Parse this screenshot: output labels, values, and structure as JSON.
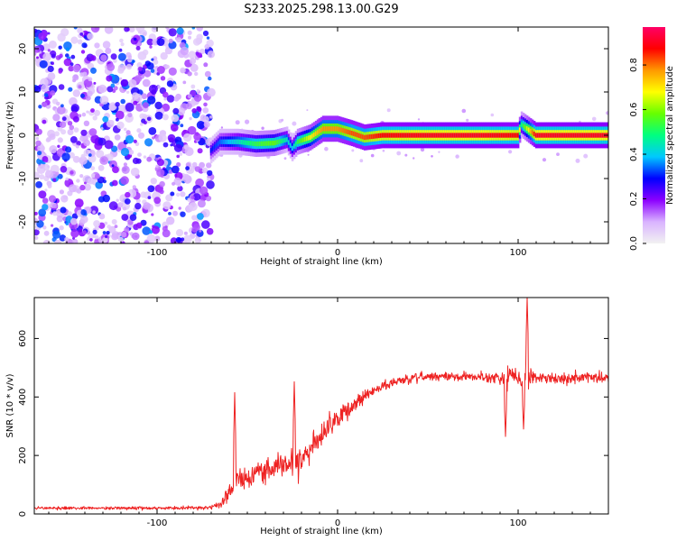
{
  "title": "S233.2025.298.13.00.G29",
  "chart_data": [
    {
      "type": "heatmap",
      "name": "spectrogram",
      "xlabel": "Height of straight line (km)",
      "ylabel": "Frequency (Hz)",
      "xlim": [
        -168,
        150
      ],
      "ylim": [
        -25,
        25
      ],
      "xticks": [
        -100,
        0,
        100
      ],
      "yticks": [
        -20,
        -10,
        0,
        10,
        20
      ],
      "xtick_labels": [
        "-100",
        "0",
        "100"
      ],
      "ytick_labels": [
        "-20",
        "-10",
        "0",
        "10",
        "20"
      ],
      "colorbar": {
        "label": "Normalized spectral amplitude",
        "range": [
          0,
          0.97
        ],
        "ticks": [
          0,
          0.2,
          0.4,
          0.6,
          0.8
        ],
        "tick_labels": [
          "0.0",
          "0.2",
          "0.4",
          "0.6",
          "0.8"
        ],
        "colors": [
          "#f2f2f2",
          "#d9b3ff",
          "#8c00ff",
          "#0000ff",
          "#00c8ff",
          "#00ff80",
          "#66ff00",
          "#ffff00",
          "#ff9900",
          "#ff0000",
          "#ff0066"
        ]
      },
      "noise_region_x": [
        -168,
        -70
      ],
      "signal_track": {
        "x": [
          -70,
          -65,
          -55,
          -45,
          -35,
          -28,
          -25,
          -22,
          -15,
          -8,
          0,
          8,
          15,
          25,
          40,
          60,
          80,
          100,
          102,
          110,
          130,
          150
        ],
        "freq": [
          -3.5,
          -1.5,
          -1.5,
          -2.0,
          -1.8,
          -1.0,
          -3.0,
          -1.5,
          -0.5,
          1.5,
          1.5,
          0.5,
          -0.5,
          0.0,
          0.0,
          0.0,
          0.0,
          0.0,
          2.5,
          0.0,
          0.0,
          0.0
        ],
        "amplitude": [
          0.3,
          0.35,
          0.45,
          0.55,
          0.6,
          0.45,
          0.4,
          0.55,
          0.7,
          0.8,
          0.8,
          0.85,
          0.85,
          0.9,
          0.92,
          0.93,
          0.93,
          0.9,
          0.5,
          0.93,
          0.93,
          0.93
        ]
      }
    },
    {
      "type": "line",
      "name": "snr",
      "xlabel": "Height of straight line (km)",
      "ylabel": "SNR (10 * v/v)",
      "xlim": [
        -168,
        150
      ],
      "ylim": [
        0,
        740
      ],
      "xticks": [
        -100,
        0,
        100
      ],
      "yticks": [
        0,
        200,
        400,
        600
      ],
      "xtick_labels": [
        "-100",
        "0",
        "100"
      ],
      "ytick_labels": [
        "0",
        "200",
        "400",
        "600"
      ],
      "color": "#ee2222",
      "envelope": {
        "x": [
          -168,
          -140,
          -100,
          -70,
          -63,
          -60,
          -58,
          -50,
          -40,
          -30,
          -25,
          -20,
          -15,
          -10,
          -5,
          0,
          10,
          20,
          30,
          50,
          70,
          90,
          95,
          100,
          105,
          110,
          130,
          150
        ],
        "mean": [
          20,
          20,
          20,
          22,
          40,
          80,
          100,
          130,
          150,
          170,
          160,
          180,
          220,
          260,
          300,
          330,
          380,
          420,
          450,
          470,
          470,
          465,
          470,
          470,
          470,
          465,
          465,
          465
        ],
        "noise": [
          8,
          8,
          8,
          10,
          30,
          60,
          60,
          60,
          60,
          60,
          70,
          70,
          70,
          65,
          60,
          50,
          40,
          30,
          25,
          22,
          22,
          25,
          60,
          40,
          70,
          30,
          30,
          35
        ]
      },
      "spikes": [
        {
          "x": -57,
          "y": 415
        },
        {
          "x": -24,
          "y": 452
        },
        {
          "x": 93,
          "y": 265
        },
        {
          "x": 105,
          "y": 740
        },
        {
          "x": 103,
          "y": 290
        }
      ]
    }
  ]
}
